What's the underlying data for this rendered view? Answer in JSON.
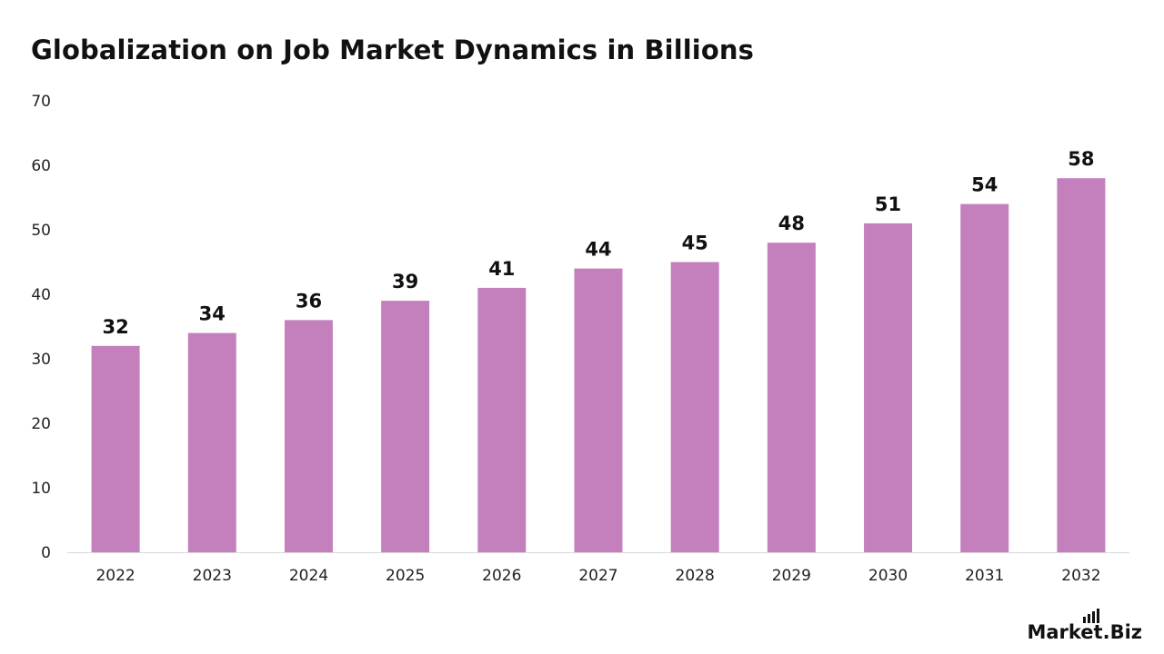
{
  "chart_data": {
    "type": "bar",
    "title": "Globalization on Job Market Dynamics in Billions",
    "xlabel": "",
    "ylabel": "",
    "categories": [
      "2022",
      "2023",
      "2024",
      "2025",
      "2026",
      "2027",
      "2028",
      "2029",
      "2030",
      "2031",
      "2032"
    ],
    "values": [
      32,
      34,
      36,
      39,
      41,
      44,
      45,
      48,
      51,
      54,
      58
    ],
    "ylim": [
      0,
      70
    ],
    "yticks": [
      0,
      10,
      20,
      30,
      40,
      50,
      60,
      70
    ],
    "grid": false,
    "legend": "none",
    "bar_color": "#c47fbd",
    "data_labels": true
  },
  "brand": {
    "name": "Market.Biz",
    "icon": "bar-signal-icon"
  }
}
